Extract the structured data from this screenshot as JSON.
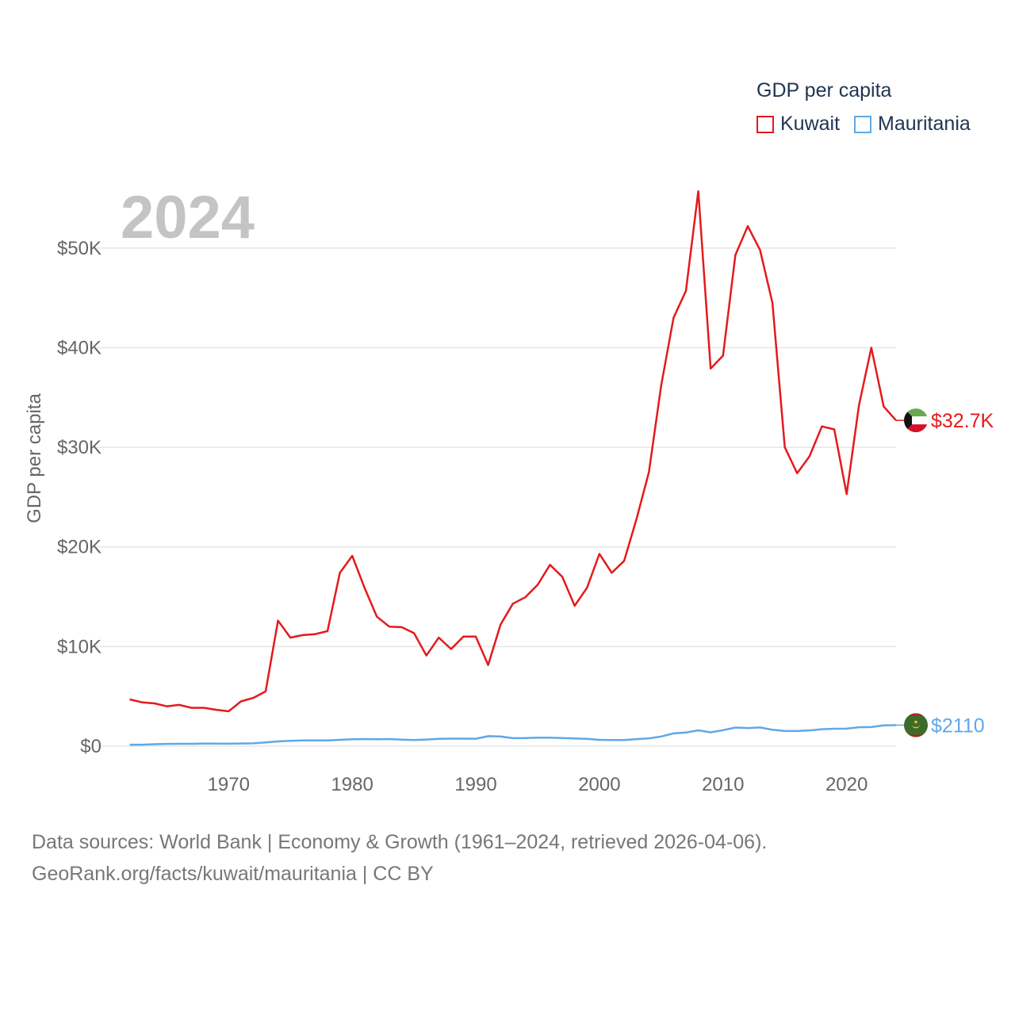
{
  "chart_data": {
    "type": "line",
    "year_label": "2024",
    "ylabel": "GDP per capita",
    "xlabel": "",
    "xlim": [
      1961,
      2024
    ],
    "ylim": [
      0,
      55000
    ],
    "y_ticks": [
      0,
      10000,
      20000,
      30000,
      40000,
      50000
    ],
    "y_tick_labels": [
      "$0",
      "$10K",
      "$20K",
      "$30K",
      "$40K",
      "$50K"
    ],
    "x_ticks": [
      1970,
      1980,
      1990,
      2000,
      2010,
      2020
    ],
    "x_tick_labels": [
      "1970",
      "1980",
      "1990",
      "2000",
      "2010",
      "2020"
    ],
    "legend_title": "GDP per capita",
    "x": [
      1962,
      1963,
      1964,
      1965,
      1966,
      1967,
      1968,
      1969,
      1970,
      1971,
      1972,
      1973,
      1974,
      1975,
      1976,
      1977,
      1978,
      1979,
      1980,
      1981,
      1982,
      1983,
      1984,
      1985,
      1986,
      1987,
      1988,
      1989,
      1990,
      1991,
      1992,
      1993,
      1994,
      1995,
      1996,
      1997,
      1998,
      1999,
      2000,
      2001,
      2002,
      2003,
      2004,
      2005,
      2006,
      2007,
      2008,
      2009,
      2010,
      2011,
      2012,
      2013,
      2014,
      2015,
      2016,
      2017,
      2018,
      2019,
      2020,
      2021,
      2022,
      2023,
      2024
    ],
    "series": [
      {
        "name": "Kuwait",
        "color": "#e41a1c",
        "end_label": "$32.7K",
        "values": [
          4700,
          4400,
          4300,
          4000,
          4150,
          3850,
          3850,
          3650,
          3500,
          4500,
          4850,
          5500,
          12600,
          10900,
          11150,
          11250,
          11550,
          17400,
          19100,
          15900,
          13000,
          12000,
          11950,
          11350,
          9100,
          10900,
          9750,
          11000,
          11000,
          8150,
          12200,
          14300,
          14950,
          16200,
          18200,
          17000,
          14100,
          15900,
          19300,
          17400,
          18600,
          22800,
          27500,
          36200,
          43000,
          45700,
          55700,
          37900,
          39200,
          49300,
          52200,
          49800,
          44500,
          30000,
          27400,
          29100,
          32100,
          31800,
          25300,
          34200,
          40000,
          34100,
          32700
        ]
      },
      {
        "name": "Mauritania",
        "color": "#5fa8e8",
        "end_label": "$2110",
        "values": [
          150,
          150,
          200,
          230,
          240,
          240,
          260,
          260,
          250,
          270,
          290,
          380,
          480,
          530,
          580,
          580,
          570,
          640,
          700,
          720,
          700,
          720,
          660,
          610,
          670,
          730,
          760,
          760,
          750,
          1000,
          970,
          800,
          810,
          850,
          850,
          820,
          780,
          740,
          640,
          610,
          620,
          710,
          790,
          970,
          1280,
          1370,
          1590,
          1390,
          1610,
          1870,
          1820,
          1880,
          1650,
          1520,
          1520,
          1580,
          1700,
          1750,
          1760,
          1900,
          1920,
          2090,
          2110
        ]
      }
    ]
  },
  "footer": {
    "sources": "Data sources: World Bank | Economy & Growth (1961–2024, retrieved 2026-04-06).",
    "credit": "GeoRank.org/facts/kuwait/mauritania | CC BY"
  }
}
